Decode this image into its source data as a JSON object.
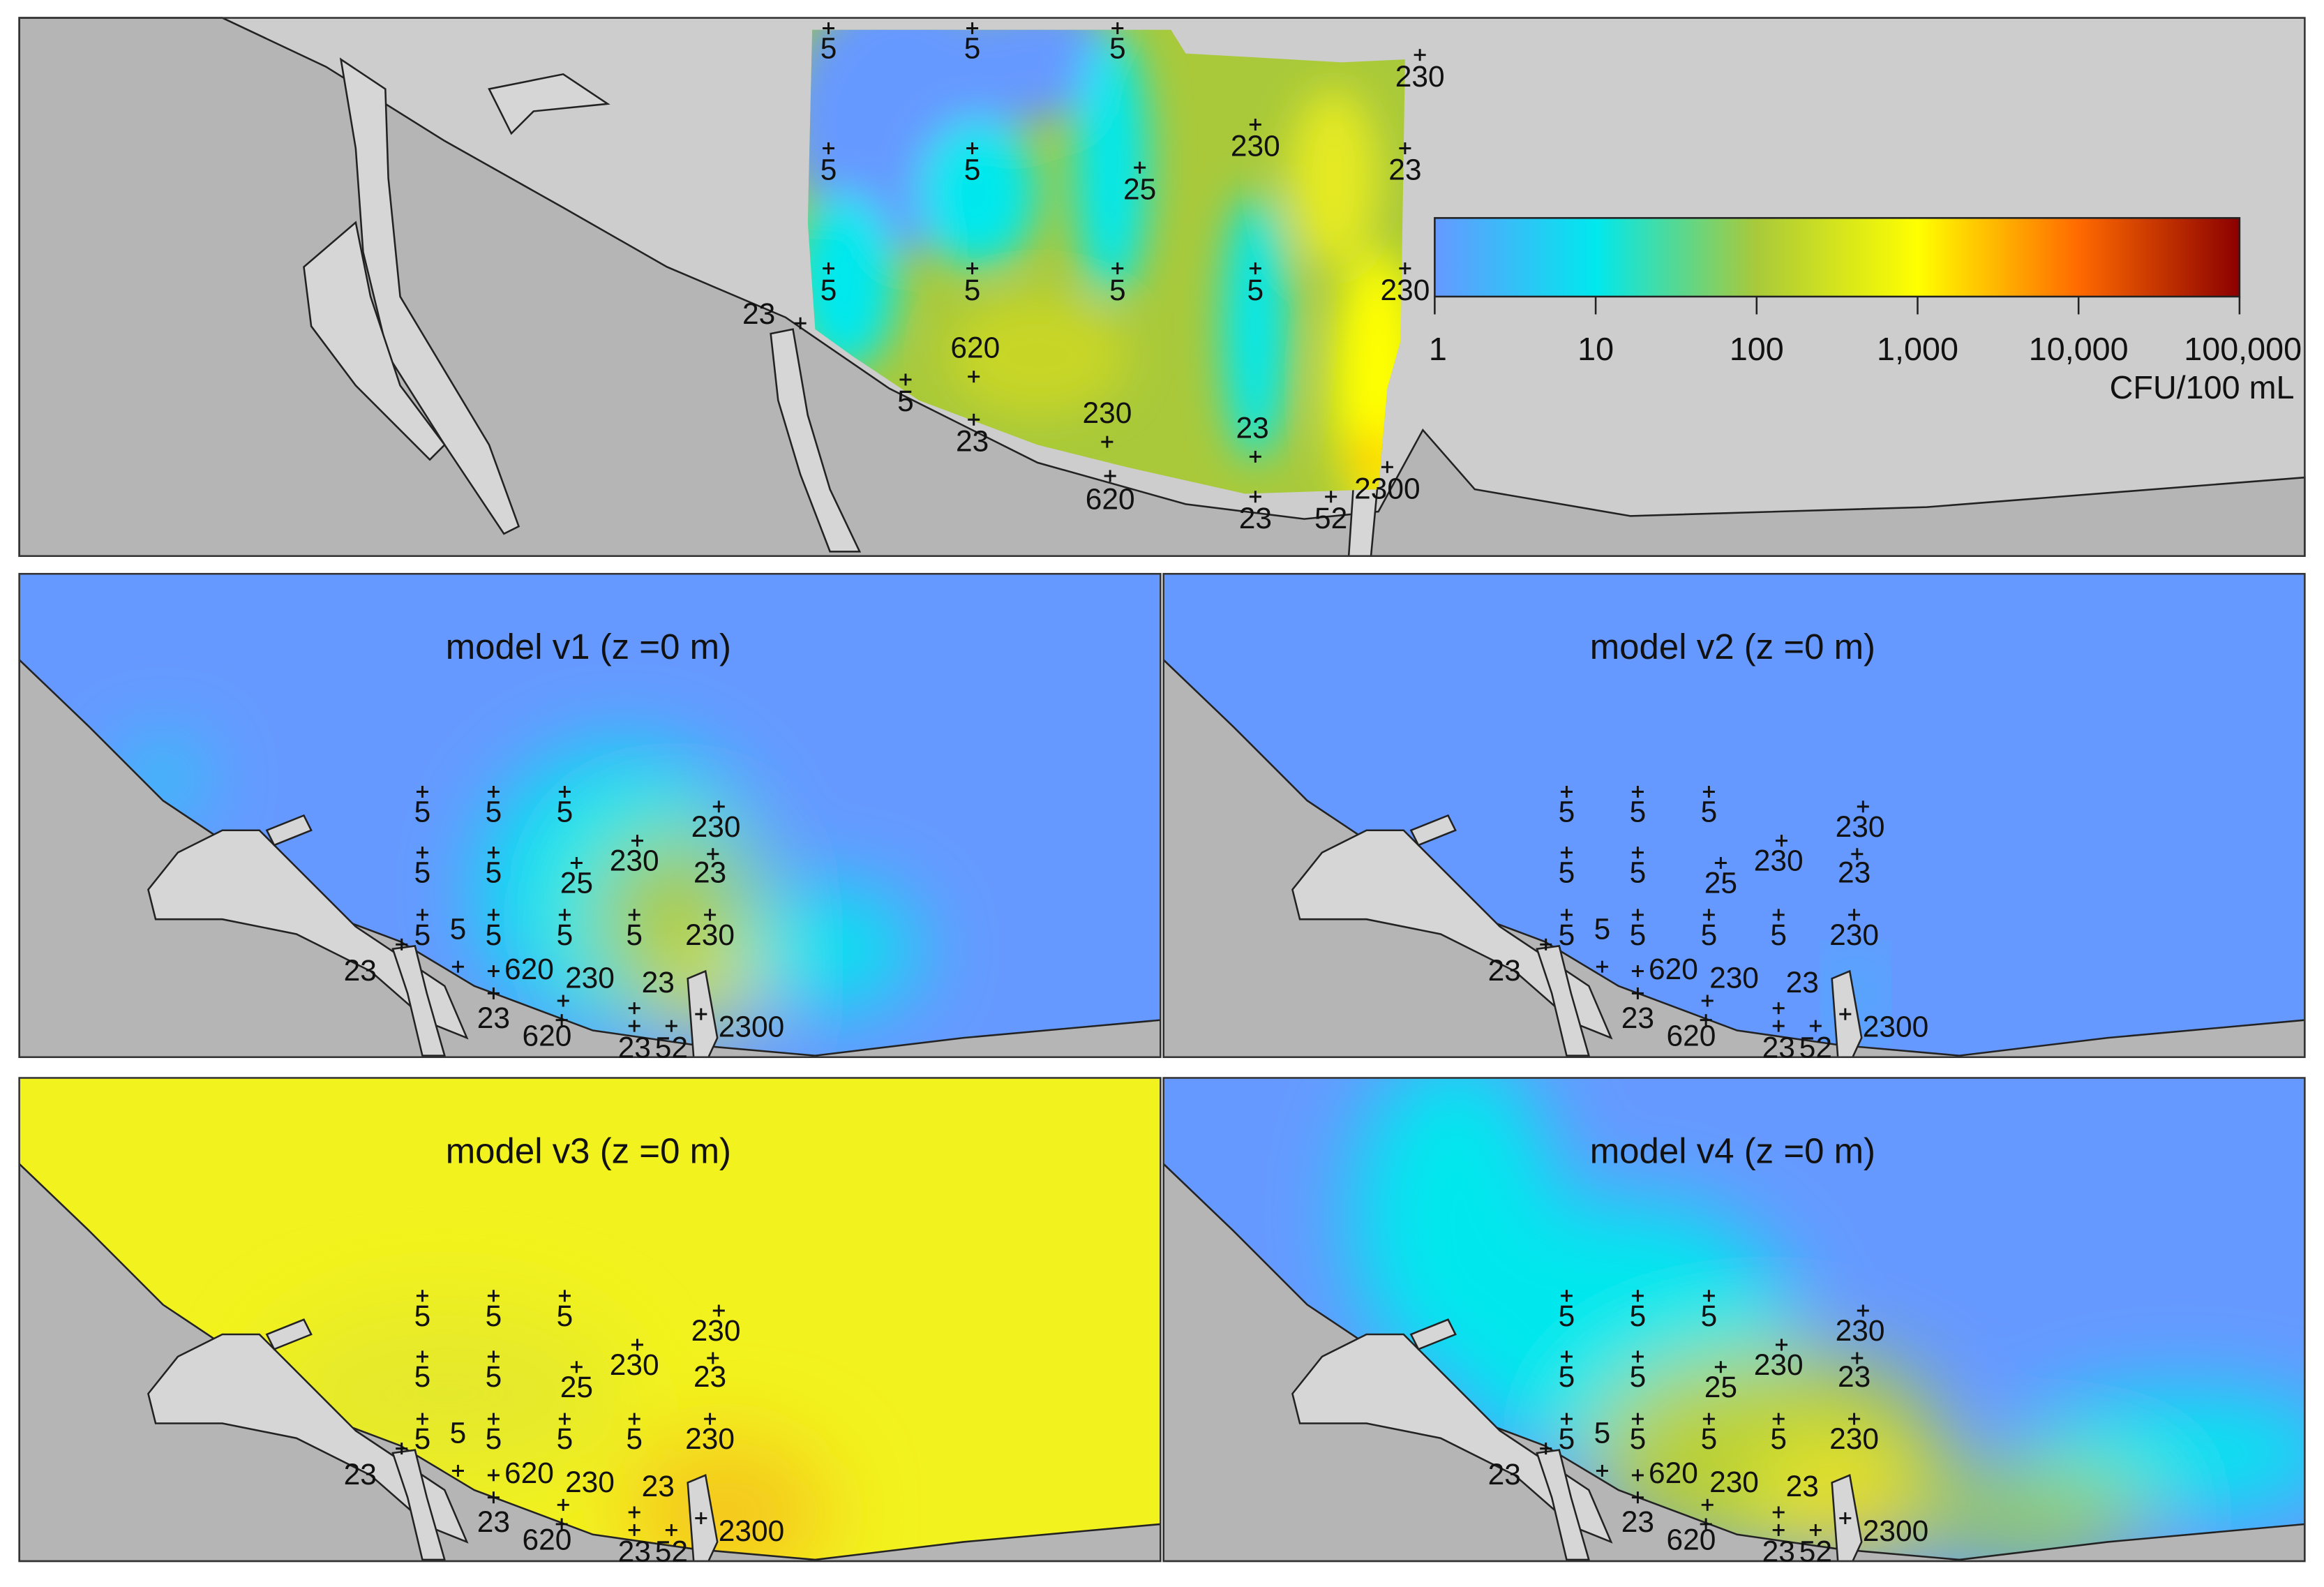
{
  "colorbar": {
    "scale": "log",
    "range": [
      1,
      100000
    ],
    "colors": [
      "#6699ff",
      "#00e8ee",
      "#a9c93a",
      "#ffff00",
      "#ff6a00",
      "#8b0000"
    ],
    "ticks": [
      1,
      10,
      100,
      {
        "value": 1000,
        "label": "1,000"
      },
      {
        "value": 10000,
        "label": "10,000"
      },
      {
        "value": 100000,
        "label": "100,000"
      }
    ],
    "unit": "CFU/100 mL"
  },
  "observed": {
    "samples": [
      5,
      5,
      5,
      230,
      230,
      5,
      5,
      25,
      23,
      5,
      5,
      5,
      5,
      230,
      23,
      620,
      5,
      230,
      23,
      23,
      620,
      23,
      52,
      2300
    ]
  },
  "models": [
    {
      "title": "model v1 (z =0 m)",
      "samples": [
        5,
        5,
        5,
        230,
        5,
        5,
        25,
        230,
        23,
        5,
        5,
        5,
        5,
        5,
        230,
        23,
        620,
        230,
        23,
        23,
        620,
        23,
        52,
        2300
      ]
    },
    {
      "title": "model v2 (z =0 m)",
      "samples": [
        5,
        5,
        5,
        230,
        5,
        5,
        25,
        230,
        23,
        5,
        5,
        5,
        5,
        5,
        230,
        23,
        620,
        230,
        23,
        23,
        620,
        23,
        52,
        2300
      ]
    },
    {
      "title": "model v3 (z =0 m)",
      "samples": [
        5,
        5,
        5,
        230,
        5,
        5,
        25,
        230,
        23,
        5,
        5,
        5,
        5,
        5,
        230,
        23,
        620,
        230,
        23,
        23,
        620,
        23,
        52,
        2300
      ]
    },
    {
      "title": "model v4 (z =0 m)",
      "samples": [
        5,
        5,
        5,
        230,
        5,
        5,
        25,
        230,
        23,
        5,
        5,
        5,
        5,
        5,
        230,
        23,
        620,
        230,
        23,
        23,
        620,
        23,
        52,
        2300
      ]
    }
  ]
}
